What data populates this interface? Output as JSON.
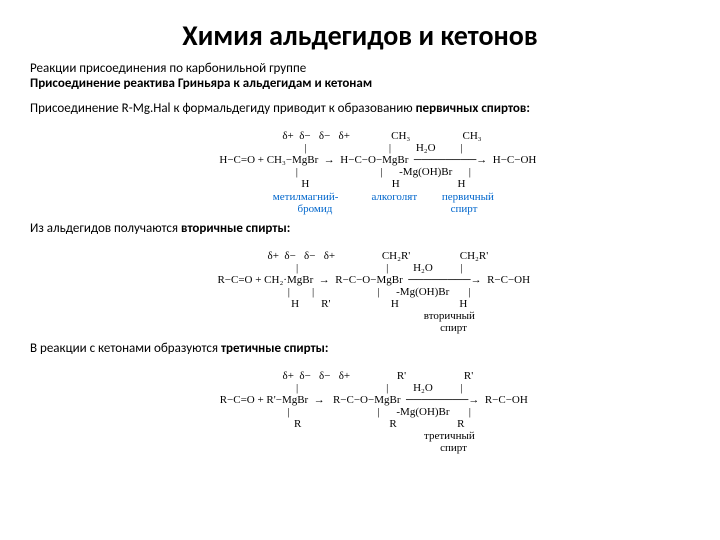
{
  "title": "Химия альдегидов и кетонов",
  "subtitle1": "Реакции присоединения по карбонильной группе",
  "subtitle2": "Присоединение реактива Гриньяра к альдегидам и кетонам",
  "para1_a": "Присоединение R-Mg.Hal к формальдегиду приводит к образованию ",
  "para1_b": "первичных спиртов:",
  "scheme1": {
    "l1": "                δ+  δ−   δ−   δ+               CH₃                   CH₃",
    "l2": "                 |                              |         H₂O         |",
    "l3": "             H−C=O + CH₃−MgBr  →  H−C−O−MgBr  ────────→  H−C−OH",
    "l4": "                 |                              |      -Mg(OH)Br      |",
    "l5": "                 H                              H                     H",
    "lab_mm": "метилмагний-\nбромид",
    "lab_alk": "алкоголят",
    "lab_prod": "первичный\nспирт"
  },
  "para2_a": "Из альдегидов получаются ",
  "para2_b": "вторичные спирты:",
  "scheme2": {
    "l1": "             δ+  δ−   δ−   δ+                 CH₂R'                  CH₂R'",
    "l2": "              |                                |         H₂O          |",
    "l3": "          R−C=O + CH₂·MgBr  →  R−C−O−MgBr  ────────→  R−C−OH",
    "l4": "              |        |                       |      -Mg(OH)Br       |",
    "l5": "              H        R'                      H                      H",
    "lab_prod": "вторичный\nспирт"
  },
  "para3_a": "В реакции с кетонами образуются ",
  "para3_b": "третичные спирты:",
  "scheme3": {
    "l1": "             δ+  δ−   δ−   δ+                 R'                     R'",
    "l2": "              |                                |         H₂O          |",
    "l3": "          R−C=O + R'−MgBr  →   R−C−O−MgBr  ────────→  R−C−OH",
    "l4": "              |                                |      -Mg(OH)Br       |",
    "l5": "              R                                R                      R",
    "lab_prod": "третичный\nспирт"
  }
}
